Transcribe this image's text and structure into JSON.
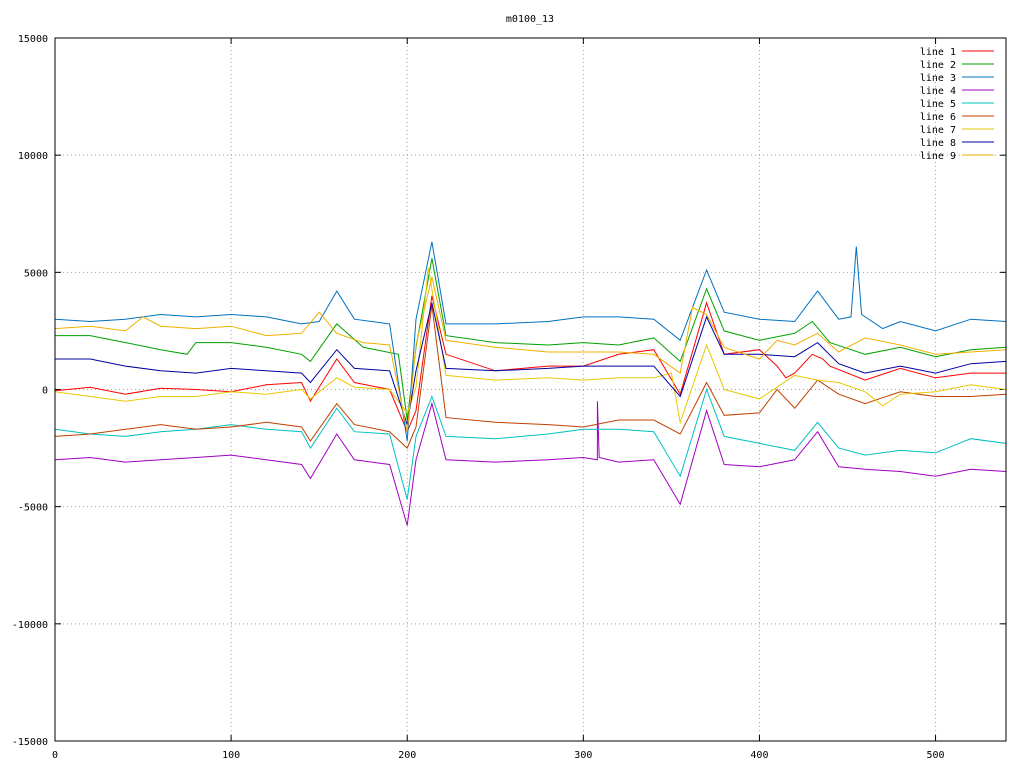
{
  "chart_data": {
    "type": "line",
    "title": "m0100_13",
    "xlabel": "",
    "ylabel": "",
    "xlim": [
      0,
      540
    ],
    "ylim": [
      -15000,
      15000
    ],
    "xticks": [
      0,
      100,
      200,
      300,
      400,
      500
    ],
    "yticks": [
      -15000,
      -10000,
      -5000,
      0,
      5000,
      10000,
      15000
    ],
    "grid": true,
    "legend_position": "top-right",
    "series": [
      {
        "name": "line 1",
        "color": "#ff0000",
        "points": [
          [
            0,
            -50
          ],
          [
            20,
            100
          ],
          [
            40,
            -200
          ],
          [
            60,
            50
          ],
          [
            80,
            0
          ],
          [
            100,
            -100
          ],
          [
            120,
            200
          ],
          [
            140,
            300
          ],
          [
            145,
            -500
          ],
          [
            160,
            1300
          ],
          [
            170,
            300
          ],
          [
            190,
            0
          ],
          [
            200,
            -1800
          ],
          [
            205,
            -900
          ],
          [
            214,
            4000
          ],
          [
            222,
            1500
          ],
          [
            250,
            800
          ],
          [
            280,
            1000
          ],
          [
            300,
            1000
          ],
          [
            320,
            1500
          ],
          [
            340,
            1700
          ],
          [
            355,
            -200
          ],
          [
            370,
            3700
          ],
          [
            380,
            1500
          ],
          [
            400,
            1700
          ],
          [
            410,
            1000
          ],
          [
            415,
            500
          ],
          [
            420,
            700
          ],
          [
            430,
            1500
          ],
          [
            436,
            1300
          ],
          [
            440,
            1000
          ],
          [
            460,
            400
          ],
          [
            480,
            900
          ],
          [
            500,
            500
          ],
          [
            520,
            700
          ],
          [
            540,
            700
          ]
        ]
      },
      {
        "name": "line 2",
        "color": "#00a000",
        "points": [
          [
            0,
            2300
          ],
          [
            20,
            2300
          ],
          [
            40,
            2000
          ],
          [
            60,
            1700
          ],
          [
            75,
            1500
          ],
          [
            80,
            2000
          ],
          [
            100,
            2000
          ],
          [
            120,
            1800
          ],
          [
            140,
            1500
          ],
          [
            145,
            1200
          ],
          [
            160,
            2800
          ],
          [
            175,
            1800
          ],
          [
            195,
            1500
          ],
          [
            200,
            -1300
          ],
          [
            205,
            1800
          ],
          [
            214,
            5600
          ],
          [
            222,
            2300
          ],
          [
            250,
            2000
          ],
          [
            280,
            1900
          ],
          [
            300,
            2000
          ],
          [
            320,
            1900
          ],
          [
            340,
            2200
          ],
          [
            355,
            1200
          ],
          [
            370,
            4300
          ],
          [
            380,
            2500
          ],
          [
            400,
            2100
          ],
          [
            420,
            2400
          ],
          [
            430,
            2900
          ],
          [
            440,
            2000
          ],
          [
            460,
            1500
          ],
          [
            480,
            1800
          ],
          [
            500,
            1400
          ],
          [
            520,
            1700
          ],
          [
            540,
            1800
          ]
        ]
      },
      {
        "name": "line 3",
        "color": "#0070c0",
        "points": [
          [
            0,
            3000
          ],
          [
            20,
            2900
          ],
          [
            40,
            3000
          ],
          [
            60,
            3200
          ],
          [
            80,
            3100
          ],
          [
            100,
            3200
          ],
          [
            120,
            3100
          ],
          [
            140,
            2800
          ],
          [
            150,
            2900
          ],
          [
            160,
            4200
          ],
          [
            170,
            3000
          ],
          [
            190,
            2800
          ],
          [
            200,
            -2200
          ],
          [
            205,
            3000
          ],
          [
            214,
            6300
          ],
          [
            222,
            2800
          ],
          [
            250,
            2800
          ],
          [
            280,
            2900
          ],
          [
            300,
            3100
          ],
          [
            320,
            3100
          ],
          [
            340,
            3000
          ],
          [
            355,
            2100
          ],
          [
            370,
            5100
          ],
          [
            380,
            3300
          ],
          [
            400,
            3000
          ],
          [
            420,
            2900
          ],
          [
            433,
            4200
          ],
          [
            445,
            3000
          ],
          [
            452,
            3100
          ],
          [
            455,
            6100
          ],
          [
            458,
            3200
          ],
          [
            470,
            2600
          ],
          [
            480,
            2900
          ],
          [
            500,
            2500
          ],
          [
            520,
            3000
          ],
          [
            540,
            2900
          ]
        ]
      },
      {
        "name": "line 4",
        "color": "#a000c0",
        "points": [
          [
            0,
            -3000
          ],
          [
            20,
            -2900
          ],
          [
            40,
            -3100
          ],
          [
            60,
            -3000
          ],
          [
            80,
            -2900
          ],
          [
            100,
            -2800
          ],
          [
            120,
            -3000
          ],
          [
            140,
            -3200
          ],
          [
            145,
            -3800
          ],
          [
            160,
            -1900
          ],
          [
            170,
            -3000
          ],
          [
            190,
            -3200
          ],
          [
            200,
            -5800
          ],
          [
            205,
            -3000
          ],
          [
            214,
            -600
          ],
          [
            222,
            -3000
          ],
          [
            250,
            -3100
          ],
          [
            280,
            -3000
          ],
          [
            300,
            -2900
          ],
          [
            308,
            -3000
          ],
          [
            308,
            -500
          ],
          [
            309,
            -2900
          ],
          [
            320,
            -3100
          ],
          [
            340,
            -3000
          ],
          [
            355,
            -4900
          ],
          [
            370,
            -900
          ],
          [
            380,
            -3200
          ],
          [
            400,
            -3300
          ],
          [
            420,
            -3000
          ],
          [
            433,
            -1800
          ],
          [
            445,
            -3300
          ],
          [
            460,
            -3400
          ],
          [
            480,
            -3500
          ],
          [
            500,
            -3700
          ],
          [
            520,
            -3400
          ],
          [
            540,
            -3500
          ]
        ]
      },
      {
        "name": "line 5",
        "color": "#00c0c0",
        "points": [
          [
            0,
            -1700
          ],
          [
            20,
            -1900
          ],
          [
            40,
            -2000
          ],
          [
            60,
            -1800
          ],
          [
            80,
            -1700
          ],
          [
            100,
            -1500
          ],
          [
            120,
            -1700
          ],
          [
            140,
            -1800
          ],
          [
            145,
            -2500
          ],
          [
            160,
            -800
          ],
          [
            170,
            -1800
          ],
          [
            190,
            -1900
          ],
          [
            200,
            -4700
          ],
          [
            205,
            -2000
          ],
          [
            214,
            -300
          ],
          [
            222,
            -2000
          ],
          [
            250,
            -2100
          ],
          [
            280,
            -1900
          ],
          [
            300,
            -1700
          ],
          [
            320,
            -1700
          ],
          [
            340,
            -1800
          ],
          [
            355,
            -3700
          ],
          [
            370,
            0
          ],
          [
            380,
            -2000
          ],
          [
            400,
            -2300
          ],
          [
            420,
            -2600
          ],
          [
            433,
            -1400
          ],
          [
            445,
            -2500
          ],
          [
            460,
            -2800
          ],
          [
            480,
            -2600
          ],
          [
            500,
            -2700
          ],
          [
            520,
            -2100
          ],
          [
            540,
            -2300
          ]
        ]
      },
      {
        "name": "line 6",
        "color": "#c04000",
        "points": [
          [
            0,
            -2000
          ],
          [
            20,
            -1900
          ],
          [
            40,
            -1700
          ],
          [
            60,
            -1500
          ],
          [
            80,
            -1700
          ],
          [
            100,
            -1600
          ],
          [
            120,
            -1400
          ],
          [
            140,
            -1600
          ],
          [
            145,
            -2200
          ],
          [
            160,
            -600
          ],
          [
            170,
            -1500
          ],
          [
            190,
            -1800
          ],
          [
            200,
            -2500
          ],
          [
            205,
            -1600
          ],
          [
            214,
            3600
          ],
          [
            222,
            -1200
          ],
          [
            250,
            -1400
          ],
          [
            280,
            -1500
          ],
          [
            300,
            -1600
          ],
          [
            320,
            -1300
          ],
          [
            340,
            -1300
          ],
          [
            355,
            -1900
          ],
          [
            370,
            300
          ],
          [
            380,
            -1100
          ],
          [
            400,
            -1000
          ],
          [
            410,
            0
          ],
          [
            420,
            -800
          ],
          [
            433,
            400
          ],
          [
            445,
            -200
          ],
          [
            460,
            -600
          ],
          [
            480,
            -100
          ],
          [
            500,
            -300
          ],
          [
            520,
            -300
          ],
          [
            540,
            -200
          ]
        ]
      },
      {
        "name": "line 7",
        "color": "#e8c800",
        "points": [
          [
            0,
            -100
          ],
          [
            20,
            -300
          ],
          [
            40,
            -500
          ],
          [
            60,
            -300
          ],
          [
            80,
            -300
          ],
          [
            100,
            -100
          ],
          [
            120,
            -200
          ],
          [
            140,
            0
          ],
          [
            145,
            -400
          ],
          [
            160,
            500
          ],
          [
            170,
            100
          ],
          [
            190,
            0
          ],
          [
            200,
            -1000
          ],
          [
            205,
            100
          ],
          [
            212,
            5200
          ],
          [
            222,
            600
          ],
          [
            250,
            400
          ],
          [
            280,
            500
          ],
          [
            300,
            400
          ],
          [
            320,
            500
          ],
          [
            340,
            500
          ],
          [
            350,
            700
          ],
          [
            355,
            -1400
          ],
          [
            370,
            1900
          ],
          [
            380,
            0
          ],
          [
            400,
            -400
          ],
          [
            420,
            600
          ],
          [
            433,
            400
          ],
          [
            445,
            300
          ],
          [
            460,
            -100
          ],
          [
            470,
            -700
          ],
          [
            480,
            -200
          ],
          [
            500,
            -100
          ],
          [
            520,
            200
          ],
          [
            540,
            0
          ]
        ]
      },
      {
        "name": "line 8",
        "color": "#0000a0",
        "points": [
          [
            0,
            1300
          ],
          [
            20,
            1300
          ],
          [
            40,
            1000
          ],
          [
            60,
            800
          ],
          [
            80,
            700
          ],
          [
            100,
            900
          ],
          [
            120,
            800
          ],
          [
            140,
            700
          ],
          [
            145,
            300
          ],
          [
            160,
            1700
          ],
          [
            170,
            900
          ],
          [
            190,
            800
          ],
          [
            200,
            -1500
          ],
          [
            205,
            800
          ],
          [
            214,
            3700
          ],
          [
            222,
            900
          ],
          [
            250,
            800
          ],
          [
            280,
            900
          ],
          [
            300,
            1000
          ],
          [
            320,
            1000
          ],
          [
            340,
            1000
          ],
          [
            355,
            -300
          ],
          [
            370,
            3100
          ],
          [
            380,
            1500
          ],
          [
            400,
            1500
          ],
          [
            420,
            1400
          ],
          [
            433,
            2000
          ],
          [
            445,
            1100
          ],
          [
            460,
            700
          ],
          [
            480,
            1000
          ],
          [
            500,
            700
          ],
          [
            520,
            1100
          ],
          [
            540,
            1200
          ]
        ]
      },
      {
        "name": "line 9",
        "color": "#f0b000",
        "points": [
          [
            0,
            2600
          ],
          [
            20,
            2700
          ],
          [
            40,
            2500
          ],
          [
            50,
            3100
          ],
          [
            60,
            2700
          ],
          [
            80,
            2600
          ],
          [
            100,
            2700
          ],
          [
            120,
            2300
          ],
          [
            140,
            2400
          ],
          [
            150,
            3300
          ],
          [
            160,
            2400
          ],
          [
            175,
            2000
          ],
          [
            190,
            1900
          ],
          [
            200,
            -1800
          ],
          [
            205,
            1900
          ],
          [
            214,
            4800
          ],
          [
            222,
            2100
          ],
          [
            250,
            1800
          ],
          [
            280,
            1600
          ],
          [
            300,
            1600
          ],
          [
            320,
            1600
          ],
          [
            340,
            1500
          ],
          [
            355,
            700
          ],
          [
            362,
            3500
          ],
          [
            370,
            3200
          ],
          [
            380,
            1800
          ],
          [
            400,
            1300
          ],
          [
            410,
            2100
          ],
          [
            420,
            1900
          ],
          [
            433,
            2400
          ],
          [
            445,
            1600
          ],
          [
            460,
            2200
          ],
          [
            480,
            1900
          ],
          [
            500,
            1500
          ],
          [
            520,
            1600
          ],
          [
            540,
            1700
          ]
        ]
      }
    ]
  }
}
